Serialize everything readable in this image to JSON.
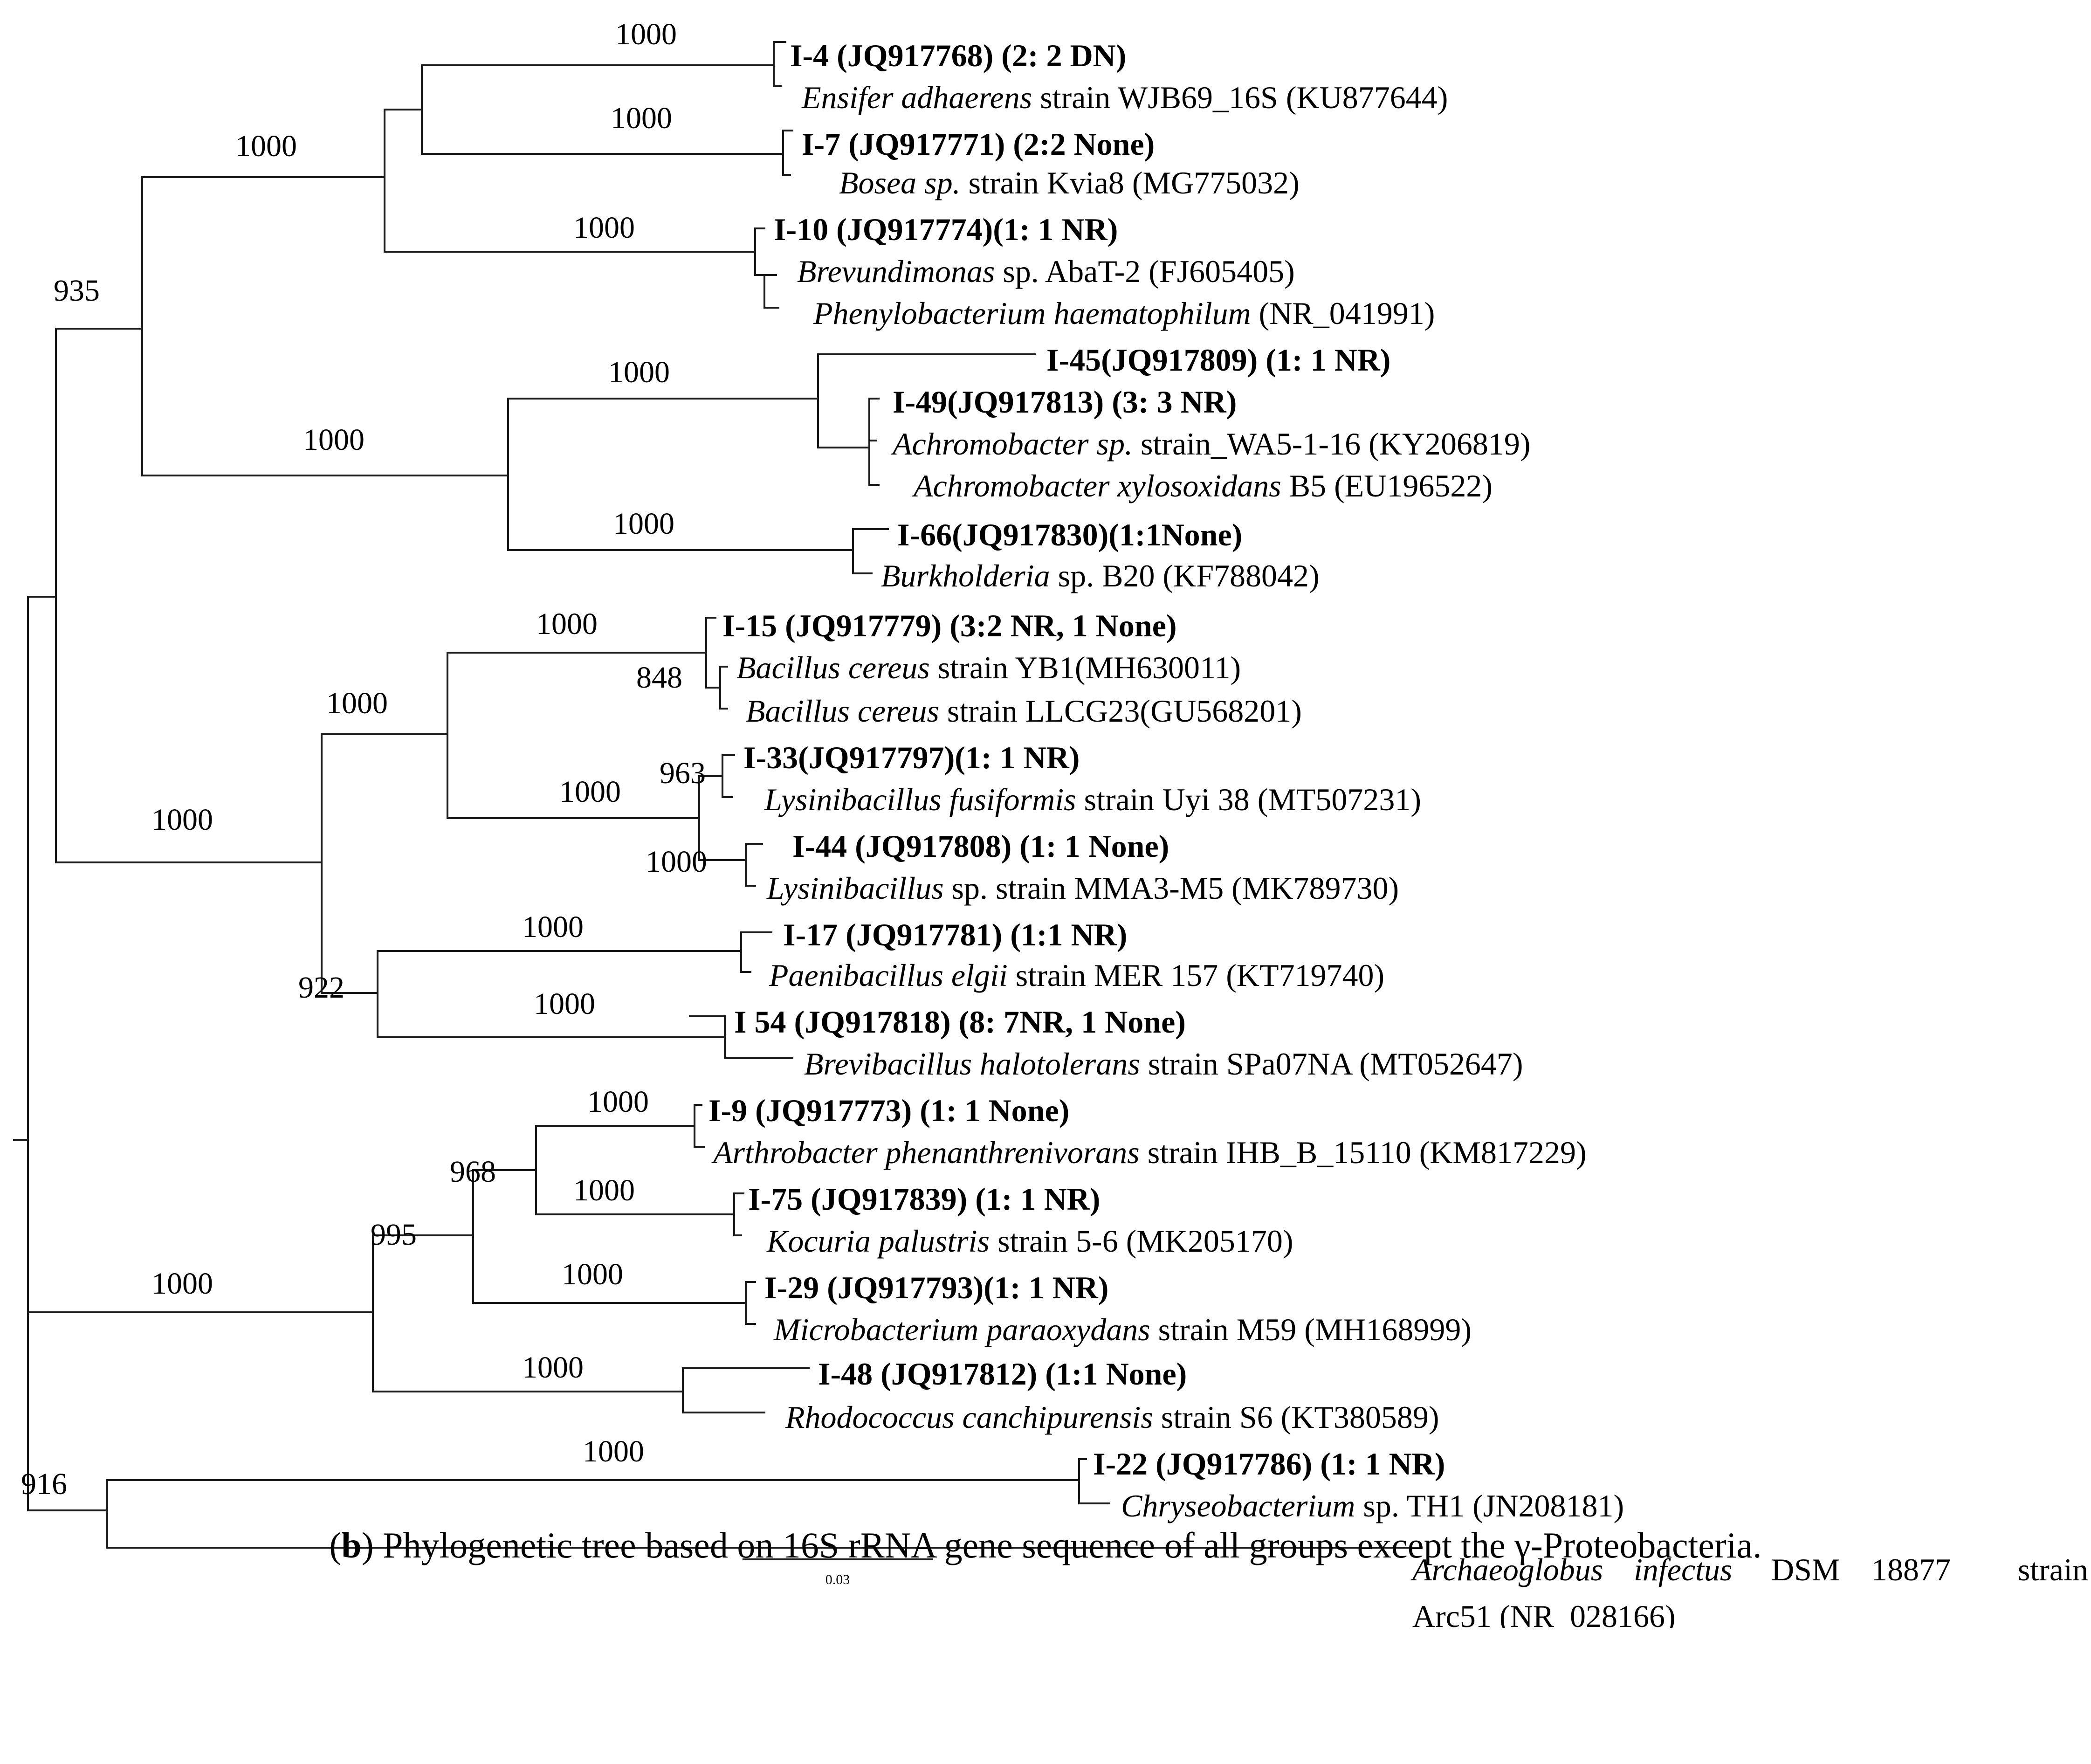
{
  "figure": {
    "caption_panel": "b",
    "caption_text": ") Phylogenetic tree based on 16S rRNA gene sequence of all groups except the γ-Proteobacteria.",
    "scale_bar_label": "0.03"
  },
  "bootstraps": {
    "b_i4": "1000",
    "b_i7": "1000",
    "b_top": "1000",
    "b_i10": "1000",
    "b_935": "935",
    "b_45grp": "1000",
    "b_betas": "1000",
    "b_66": "1000",
    "b_bac": "1000",
    "b_848": "848",
    "b_firm": "1000",
    "b_lys": "1000",
    "b_963": "963",
    "b_44": "1000",
    "b_firmroot": "1000",
    "b_17": "1000",
    "b_922": "922",
    "b_54": "1000",
    "b_9": "1000",
    "b_968": "968",
    "b_75": "1000",
    "b_995": "995",
    "b_29": "1000",
    "b_act": "1000",
    "b_48": "1000",
    "b_22": "1000",
    "b_916": "916"
  },
  "leaves": {
    "i4": "I-4 (JQ917768) (2: 2 DN)",
    "ensifer_sp": "Ensifer adhaerens",
    "ensifer_rest": " strain WJB69_16S (KU877644)",
    "i7": "I-7 (JQ917771)    (2:2 None)",
    "bosea_sp": "Bosea sp.",
    "bosea_rest": " strain Kvia8 (MG775032)",
    "i10": "I-10 (JQ917774)(1: 1 NR)",
    "brev_sp": "Brevundimonas",
    "brev_rest": " sp. AbaT-2 (FJ605405)",
    "phen_sp": "Phenylobacterium haematophilum",
    "phen_rest": " (NR_041991)",
    "i45": "I-45(JQ917809) (1: 1 NR)",
    "i49": "I-49(JQ917813) (3: 3 NR)",
    "achro1_sp": "Achromobacter sp.",
    "achro1_rest": " strain_WA5-1-16 (KY206819)",
    "achro2_sp": "Achromobacter xylosoxidans",
    "achro2_rest": " B5 (EU196522)",
    "i66": "I-66(JQ917830)(1:1None)",
    "burk_sp": "Burkholderia",
    "burk_rest": " sp. B20 (KF788042)",
    "i15": "I-15 (JQ917779) (3:2 NR, 1 None)",
    "bc1_sp": "Bacillus cereus",
    "bc1_rest": " strain YB1(MH630011)",
    "bc2_sp": "Bacillus cereus",
    "bc2_rest": " strain LLCG23(GU568201)",
    "i33": "I-33(JQ917797)(1: 1 NR)",
    "lys1_sp": "Lysinibacillus fusiformis",
    "lys1_rest": " strain Uyi 38 (MT507231)",
    "i44": "I-44 (JQ917808) (1: 1 None)",
    "lys2_sp": "Lysinibacillus",
    "lys2_rest": " sp. strain MMA3-M5 (MK789730)",
    "i17": "I-17 (JQ917781) (1:1 NR)",
    "paeni_sp": "Paenibacillus elgii",
    "paeni_rest": " strain MER 157 (KT719740)",
    "i54": "I 54 (JQ917818) (8: 7NR, 1 None)",
    "brevi_sp": "Brevibacillus halotolerans",
    "brevi_rest": " strain SPa07NA (MT052647)",
    "i9": "I-9 (JQ917773) (1: 1 None)",
    "arth_sp": "Arthrobacter phenanthrenivorans",
    "arth_rest": " strain IHB_B_15110 (KM817229)",
    "i75": "I-75 (JQ917839) (1: 1 NR)",
    "koc_sp": "Kocuria palustris",
    "koc_rest": " strain 5-6 (MK205170)",
    "i29": "I-29 (JQ917793)(1: 1 NR)",
    "micro_sp": "Microbacterium paraoxydans",
    "micro_rest": " strain M59 (MH168999)",
    "i48": "I-48 (JQ917812) (1:1 None)",
    "rhodo_sp": "Rhodococcus canchipurensis",
    "rhodo_rest": " strain S6 (KT380589)",
    "i22": "I-22 (JQ917786) (1: 1 NR)",
    "chrys_sp": "Chryseobacterium",
    "chrys_rest": " sp. TH1 (JN208181)",
    "arch_w1": "Archaeoglobus",
    "arch_w2": "infectus",
    "arch_w3": "DSM",
    "arch_w4": "18877",
    "arch_w5": "strain",
    "arch_line2": "Arc51 (NR_028166)"
  }
}
